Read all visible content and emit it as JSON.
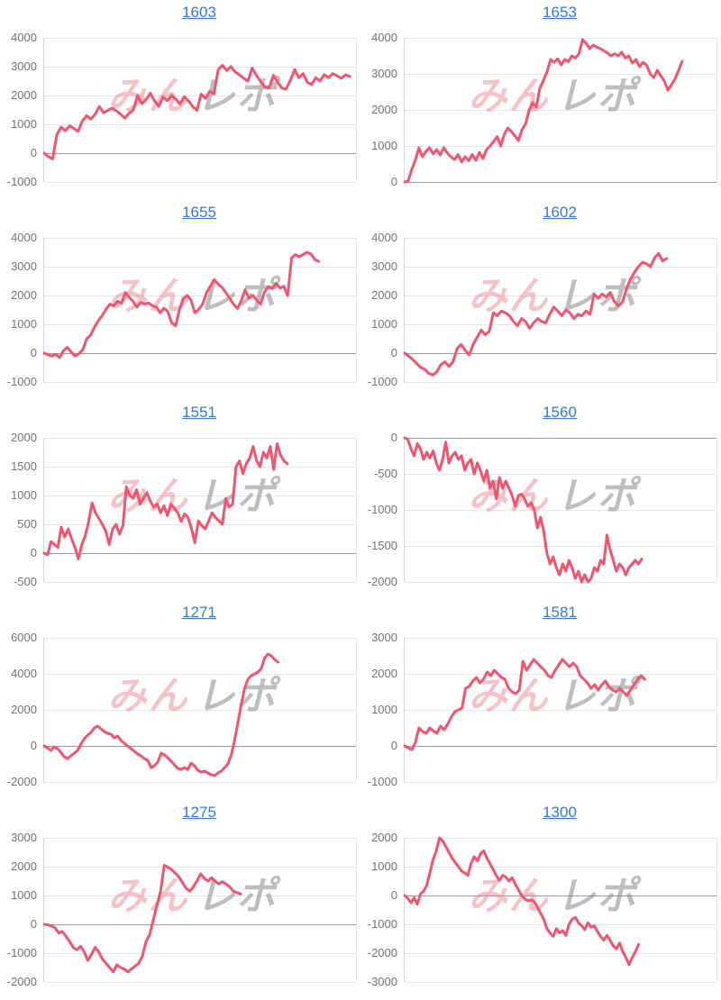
{
  "page": {
    "background": "#ffffff"
  },
  "colors": {
    "line": "#f4536e",
    "title_link": "#3878d8",
    "tick_label": "#757575",
    "gridline": "#e6e6e6",
    "axis_line": "#d9d9d9",
    "zero_line": "#9b9b9b",
    "watermark_pink": "rgba(238,118,133,0.45)",
    "watermark_gray": "rgba(125,125,125,0.5)"
  },
  "watermark": {
    "pink_text": "みん",
    "gray_text": "レポ"
  },
  "chart_data": [
    {
      "type": "line",
      "title": "1603",
      "xlabel": "",
      "ylabel": "",
      "ylim": [
        -1000,
        4000
      ],
      "yticks": [
        4000,
        3000,
        2000,
        1000,
        0,
        -1000
      ],
      "grid": true,
      "legend": "none",
      "x_fill": 0.98,
      "values": [
        0,
        -120,
        -200,
        650,
        900,
        780,
        950,
        850,
        760,
        1120,
        1300,
        1180,
        1350,
        1620,
        1400,
        1480,
        1560,
        1470,
        1350,
        1220,
        1380,
        1500,
        2000,
        1720,
        1850,
        2080,
        1820,
        1620,
        1950,
        1820,
        2000,
        1880,
        1700,
        1960,
        1820,
        1620,
        1480,
        2050,
        1900,
        2150,
        2050,
        2900,
        3050,
        2870,
        3000,
        2820,
        2720,
        2600,
        2500,
        2950,
        2700,
        2480,
        2300,
        2260,
        2700,
        2460,
        2260,
        2220,
        2520,
        2900,
        2620,
        2760,
        2460,
        2380,
        2620,
        2500,
        2720,
        2620,
        2760,
        2680,
        2600,
        2720,
        2660
      ]
    },
    {
      "type": "line",
      "title": "1653",
      "xlabel": "",
      "ylabel": "",
      "ylim": [
        0,
        4000
      ],
      "yticks": [
        4000,
        3000,
        2000,
        1000,
        0
      ],
      "grid": true,
      "legend": "none",
      "x_fill": 0.89,
      "values": [
        0,
        30,
        350,
        600,
        950,
        700,
        850,
        950,
        780,
        900,
        750,
        950,
        800,
        700,
        620,
        760,
        560,
        700,
        590,
        760,
        600,
        820,
        650,
        900,
        1000,
        1120,
        1260,
        1000,
        1320,
        1500,
        1400,
        1280,
        1150,
        1450,
        1620,
        2000,
        2200,
        2080,
        2600,
        2820,
        3050,
        3400,
        3320,
        3420,
        3250,
        3400,
        3340,
        3500,
        3440,
        3560,
        3950,
        3850,
        3700,
        3800,
        3740,
        3700,
        3640,
        3580,
        3500,
        3560,
        3500,
        3600,
        3440,
        3500,
        3300,
        3400,
        3200,
        3320,
        3240,
        3000,
        2900,
        3100,
        2940,
        2800,
        2550,
        2700,
        2860,
        3100,
        3350
      ]
    },
    {
      "type": "line",
      "title": "1655",
      "xlabel": "",
      "ylabel": "",
      "ylim": [
        -1000,
        4000
      ],
      "yticks": [
        4000,
        3000,
        2000,
        1000,
        0,
        -1000
      ],
      "grid": true,
      "legend": "none",
      "x_fill": 0.88,
      "values": [
        0,
        -60,
        -100,
        -40,
        -150,
        80,
        200,
        40,
        -100,
        -20,
        120,
        500,
        620,
        900,
        1120,
        1300,
        1520,
        1700,
        1640,
        1800,
        1740,
        2100,
        1940,
        1800,
        1600,
        1760,
        1700,
        1740,
        1640,
        1600,
        1400,
        1560,
        1440,
        1050,
        950,
        1500,
        1900,
        2000,
        1840,
        1400,
        1520,
        1700,
        2100,
        2320,
        2550,
        2400,
        2280,
        2100,
        1900,
        1700,
        1550,
        1820,
        2200,
        1900,
        2000,
        1840,
        1700,
        2120,
        2300,
        2240,
        2420,
        2260,
        2320,
        2000,
        3300,
        3420,
        3340,
        3420,
        3500,
        3440,
        3250,
        3180
      ]
    },
    {
      "type": "line",
      "title": "1602",
      "xlabel": "",
      "ylabel": "",
      "ylim": [
        -1000,
        4000
      ],
      "yticks": [
        4000,
        3000,
        2000,
        1000,
        0,
        -1000
      ],
      "grid": true,
      "legend": "none",
      "x_fill": 0.84,
      "values": [
        0,
        -100,
        -220,
        -360,
        -500,
        -560,
        -700,
        -760,
        -640,
        -400,
        -300,
        -460,
        -300,
        150,
        300,
        100,
        -60,
        300,
        560,
        800,
        640,
        760,
        1400,
        1300,
        1460,
        1400,
        1300,
        1100,
        950,
        1200,
        1100,
        860,
        1050,
        1200,
        1100,
        1050,
        1350,
        1600,
        1460,
        1300,
        1500,
        1400,
        1200,
        1350,
        1300,
        1460,
        1350,
        2050,
        1900,
        2050,
        1950,
        2100,
        1800,
        1640,
        1760,
        2200,
        2560,
        2800,
        3000,
        3150,
        3100,
        3000,
        3300,
        3460,
        3200,
        3280
      ]
    },
    {
      "type": "line",
      "title": "1551",
      "xlabel": "",
      "ylabel": "",
      "ylim": [
        -500,
        2000
      ],
      "yticks": [
        2000,
        1500,
        1000,
        500,
        0,
        -500
      ],
      "grid": true,
      "legend": "none",
      "x_fill": 0.78,
      "values": [
        0,
        -30,
        200,
        150,
        100,
        450,
        280,
        420,
        250,
        100,
        -100,
        150,
        300,
        550,
        870,
        700,
        600,
        500,
        380,
        150,
        420,
        500,
        330,
        480,
        1150,
        1000,
        950,
        1100,
        850,
        950,
        1050,
        900,
        800,
        850,
        700,
        820,
        650,
        850,
        780,
        700,
        550,
        680,
        620,
        430,
        180,
        560,
        480,
        420,
        560,
        700,
        620,
        560,
        500,
        950,
        800,
        850,
        1500,
        1600,
        1380,
        1550,
        1650,
        1850,
        1600,
        1500,
        1750,
        1650,
        1850,
        1450,
        1900,
        1700,
        1600,
        1550
      ]
    },
    {
      "type": "line",
      "title": "1560",
      "xlabel": "",
      "ylabel": "",
      "ylim": [
        -2000,
        0
      ],
      "yticks": [
        0,
        -500,
        -1000,
        -1500,
        -2000
      ],
      "grid": true,
      "legend": "none",
      "x_fill": 0.76,
      "values": [
        0,
        -20,
        -150,
        -250,
        -80,
        -150,
        -300,
        -200,
        -280,
        -180,
        -350,
        -450,
        -300,
        -60,
        -350,
        -250,
        -200,
        -300,
        -250,
        -450,
        -350,
        -300,
        -500,
        -350,
        -450,
        -600,
        -450,
        -700,
        -600,
        -850,
        -550,
        -700,
        -600,
        -700,
        -800,
        -950,
        -800,
        -780,
        -850,
        -950,
        -900,
        -1000,
        -1250,
        -1100,
        -1300,
        -1600,
        -1750,
        -1650,
        -1800,
        -1900,
        -1750,
        -1850,
        -1700,
        -1800,
        -1950,
        -1850,
        -2000,
        -1900,
        -2000,
        -1950,
        -1800,
        -1850,
        -1700,
        -1750,
        -1350,
        -1550,
        -1700,
        -1850,
        -1750,
        -1800,
        -1900,
        -1800,
        -1750,
        -1700,
        -1750,
        -1680
      ]
    },
    {
      "type": "line",
      "title": "1271",
      "xlabel": "",
      "ylabel": "",
      "ylim": [
        -2000,
        6000
      ],
      "yticks": [
        6000,
        4000,
        2000,
        0,
        -2000
      ],
      "grid": true,
      "legend": "none",
      "x_fill": 0.75,
      "values": [
        0,
        -100,
        -250,
        -50,
        -150,
        -350,
        -600,
        -700,
        -550,
        -400,
        -250,
        100,
        400,
        600,
        750,
        1000,
        1100,
        950,
        800,
        700,
        650,
        450,
        550,
        300,
        150,
        0,
        -150,
        -300,
        -450,
        -550,
        -700,
        -800,
        -1200,
        -1100,
        -900,
        -400,
        -500,
        -650,
        -850,
        -1050,
        -1250,
        -1300,
        -1200,
        -1300,
        -950,
        -1100,
        -1350,
        -1450,
        -1400,
        -1500,
        -1600,
        -1650,
        -1500,
        -1400,
        -1200,
        -1000,
        -500,
        300,
        1300,
        2300,
        3200,
        3700,
        3900,
        4000,
        4100,
        4300,
        4900,
        5100,
        5000,
        4800,
        4650
      ]
    },
    {
      "type": "line",
      "title": "1581",
      "xlabel": "",
      "ylabel": "",
      "ylim": [
        -1000,
        3000
      ],
      "yticks": [
        3000,
        2000,
        1000,
        0,
        -1000
      ],
      "grid": true,
      "legend": "none",
      "x_fill": 0.77,
      "values": [
        0,
        -50,
        -100,
        100,
        500,
        400,
        350,
        500,
        420,
        350,
        550,
        450,
        600,
        800,
        950,
        1000,
        1050,
        1600,
        1650,
        1800,
        1900,
        1750,
        1850,
        2050,
        1950,
        2100,
        2000,
        1900,
        1850,
        1600,
        1500,
        1450,
        1550,
        2350,
        2100,
        2250,
        2400,
        2300,
        2200,
        2100,
        1950,
        1900,
        2100,
        2250,
        2400,
        2300,
        2200,
        2300,
        2200,
        1950,
        1850,
        1750,
        1600,
        1700,
        1550,
        1700,
        1800,
        1650,
        1550,
        1500,
        1600,
        1500,
        1400,
        1550,
        1700,
        1850,
        1950,
        1850
      ]
    },
    {
      "type": "line",
      "title": "1275",
      "xlabel": "",
      "ylabel": "",
      "ylim": [
        -2000,
        3000
      ],
      "yticks": [
        3000,
        2000,
        1000,
        0,
        -1000,
        -2000
      ],
      "grid": true,
      "legend": "none",
      "x_fill": 0.63,
      "values": [
        0,
        -20,
        -60,
        -120,
        -300,
        -250,
        -420,
        -600,
        -800,
        -880,
        -760,
        -950,
        -1250,
        -1050,
        -800,
        -950,
        -1200,
        -1350,
        -1500,
        -1650,
        -1400,
        -1500,
        -1550,
        -1650,
        -1550,
        -1450,
        -1350,
        -1100,
        -600,
        -350,
        150,
        650,
        1150,
        2050,
        1980,
        1900,
        1780,
        1650,
        1450,
        1250,
        1150,
        1300,
        1500,
        1750,
        1600,
        1500,
        1620,
        1500,
        1400,
        1480,
        1400,
        1300,
        1150,
        1100,
        1050
      ]
    },
    {
      "type": "line",
      "title": "1300",
      "xlabel": "",
      "ylabel": "",
      "ylim": [
        -3000,
        2000
      ],
      "yticks": [
        2000,
        1000,
        0,
        -1000,
        -2000,
        -3000
      ],
      "grid": true,
      "legend": "none",
      "x_fill": 0.75,
      "values": [
        0,
        -100,
        -250,
        -80,
        -300,
        50,
        150,
        350,
        800,
        1250,
        1550,
        2000,
        1900,
        1700,
        1500,
        1300,
        1150,
        1000,
        850,
        780,
        700,
        1100,
        1350,
        1200,
        1450,
        1550,
        1300,
        1100,
        900,
        700,
        520,
        700,
        640,
        500,
        620,
        400,
        200,
        0,
        -120,
        -180,
        -150,
        -220,
        -400,
        -620,
        -820,
        -1150,
        -1300,
        -1420,
        -1150,
        -1300,
        -1220,
        -1380,
        -1000,
        -820,
        -760,
        -950,
        -1050,
        -1180,
        -950,
        -1100,
        -1050,
        -1250,
        -1420,
        -1550,
        -1380,
        -1550,
        -1750,
        -1850,
        -1650,
        -1950,
        -2150,
        -2400,
        -2150,
        -1950,
        -1700
      ]
    }
  ]
}
